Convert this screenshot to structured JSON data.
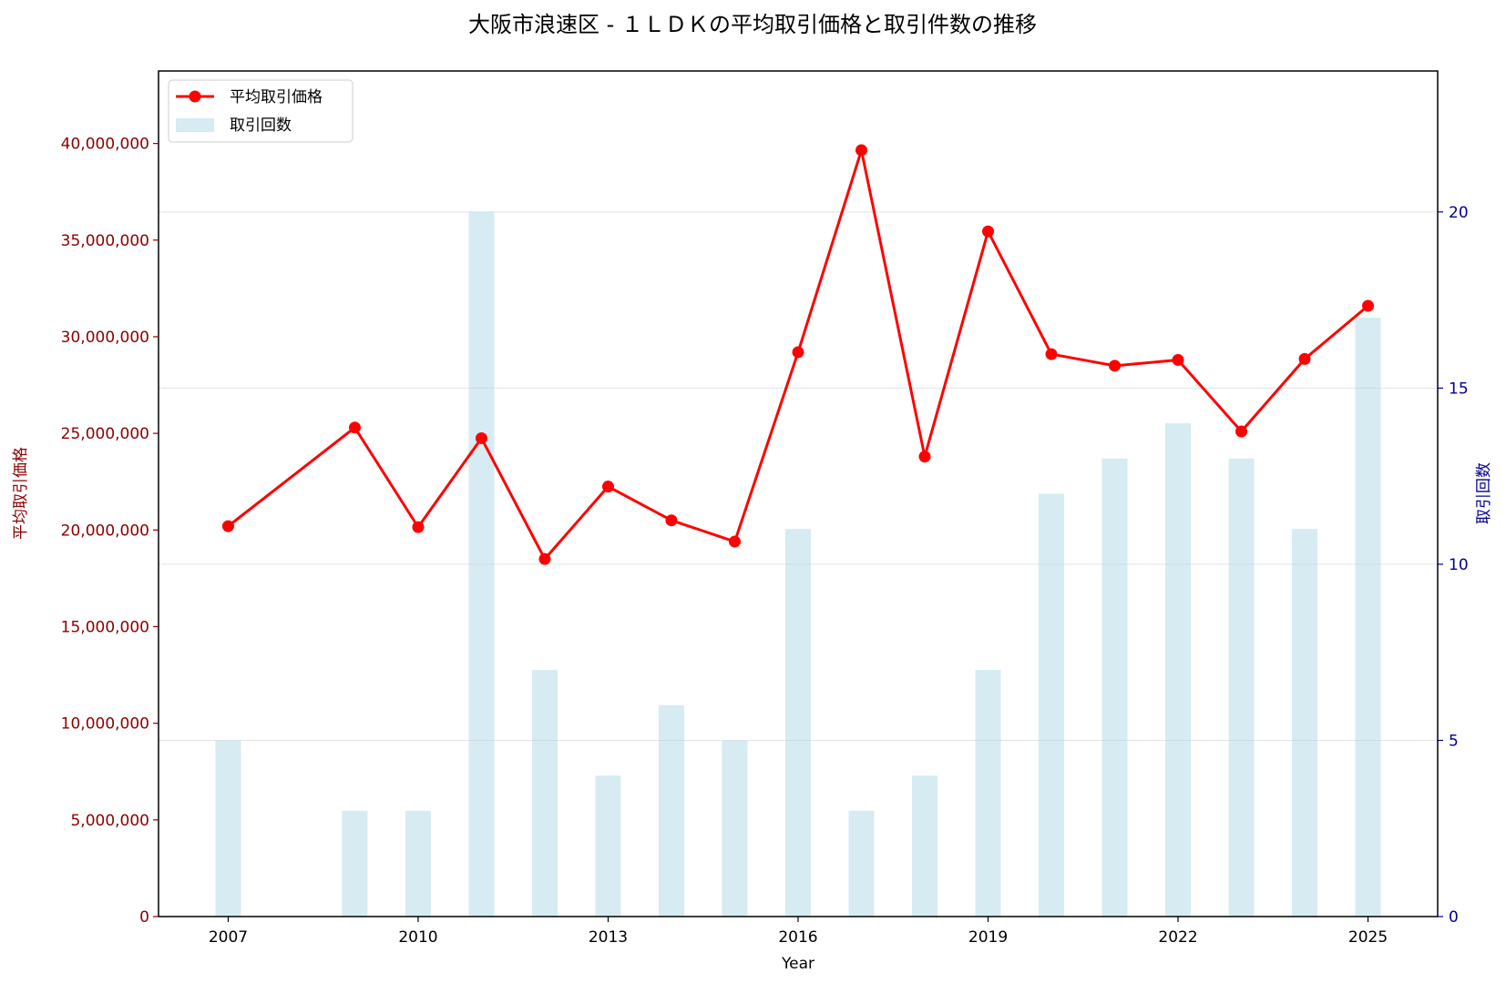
{
  "chart_data": {
    "type": "bar",
    "title": "大阪市浪速区 - １ＬＤＫの平均取引価格と取引件数の推移",
    "xlabel": "Year",
    "ylabel_left": "平均取引価格",
    "ylabel_right": "取引回数",
    "x_ticks": [
      2007,
      2010,
      2013,
      2016,
      2019,
      2022,
      2025
    ],
    "xlim": [
      2005.9,
      2026.1
    ],
    "ylim_left": [
      0,
      43750000
    ],
    "ylim_right": [
      0,
      24
    ],
    "y_ticks_left": [
      0,
      5000000,
      10000000,
      15000000,
      20000000,
      25000000,
      30000000,
      35000000,
      40000000
    ],
    "y_tick_labels_left": [
      "0",
      "5,000,000",
      "10,000,000",
      "15,000,000",
      "20,000,000",
      "25,000,000",
      "30,000,000",
      "35,000,000",
      "40,000,000"
    ],
    "y_ticks_right": [
      0,
      5,
      10,
      15,
      20
    ],
    "grid": "horizontal (right axis)",
    "legend_position": "top-left",
    "series": [
      {
        "name": "平均取引価格",
        "type": "line",
        "axis": "left",
        "color": "#ff0000",
        "x": [
          2007,
          2009,
          2010,
          2011,
          2012,
          2013,
          2014,
          2015,
          2016,
          2017,
          2018,
          2019,
          2020,
          2021,
          2022,
          2023,
          2024,
          2025
        ],
        "values": [
          20200000,
          25300000,
          20150000,
          24750000,
          18500000,
          22250000,
          20500000,
          19400000,
          29200000,
          39650000,
          23800000,
          35450000,
          29100000,
          28500000,
          28800000,
          25100000,
          28850000,
          31600000
        ]
      },
      {
        "name": "取引回数",
        "type": "bar",
        "axis": "right",
        "color": "#add8e6",
        "x": [
          2007,
          2009,
          2010,
          2011,
          2012,
          2013,
          2014,
          2015,
          2016,
          2017,
          2018,
          2019,
          2020,
          2021,
          2022,
          2023,
          2024,
          2025
        ],
        "values": [
          5,
          3,
          3,
          20,
          7,
          4,
          6,
          5,
          11,
          3,
          4,
          7,
          12,
          13,
          14,
          13,
          11,
          17
        ]
      }
    ]
  }
}
